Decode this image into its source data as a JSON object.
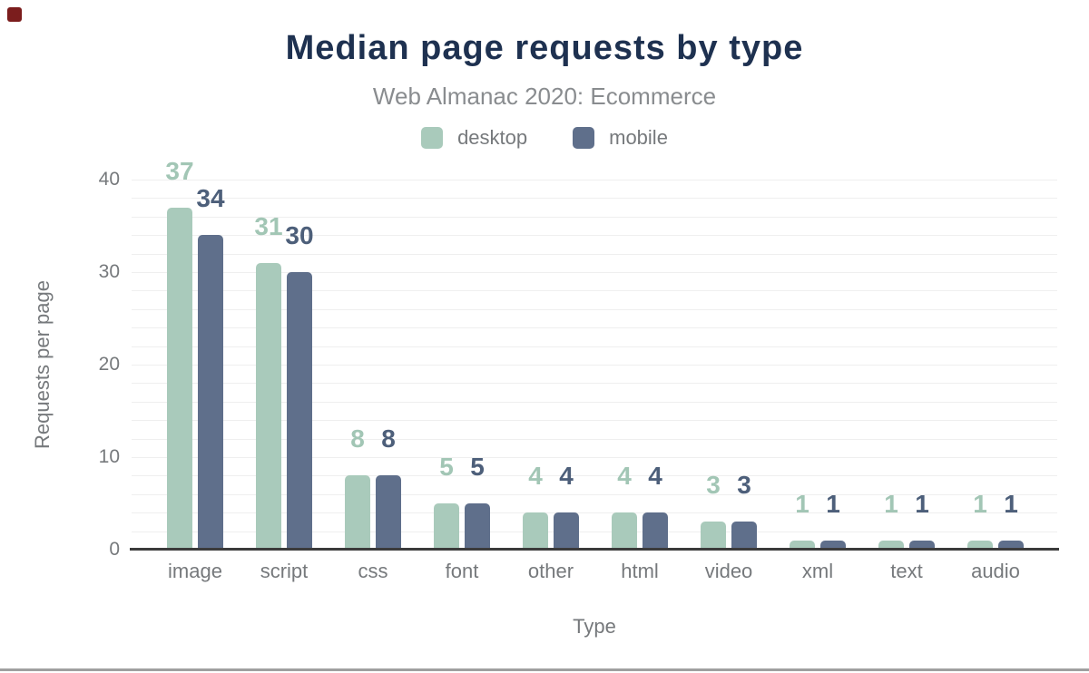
{
  "window": {
    "recording_indicator_color": "#7b1d1d",
    "bottom_border_color": "#a0a0a0"
  },
  "chart_data": {
    "type": "bar",
    "title": "Median page requests by type",
    "subtitle": "Web Almanac 2020: Ecommerce",
    "xlabel": "Type",
    "ylabel": "Requests per page",
    "categories": [
      "image",
      "script",
      "css",
      "font",
      "other",
      "html",
      "video",
      "xml",
      "text",
      "audio"
    ],
    "series": [
      {
        "name": "desktop",
        "color": "#a9cabb",
        "label_color": "#a2c6b5",
        "values": [
          37,
          31,
          8,
          5,
          4,
          4,
          3,
          1,
          1,
          1
        ]
      },
      {
        "name": "mobile",
        "color": "#5f6f8b",
        "label_color": "#4d5f7a",
        "values": [
          34,
          30,
          8,
          5,
          4,
          4,
          3,
          1,
          1,
          1
        ]
      }
    ],
    "ylim": [
      0,
      40
    ],
    "yticks": [
      0,
      10,
      20,
      30,
      40
    ],
    "grid": {
      "step": 2,
      "color": "#efefef",
      "visible": true
    },
    "legend_position": "top",
    "value_labels": true,
    "colors": {
      "title": "#1e3150",
      "subtitle": "#898c8f",
      "axis_text": "#76797c",
      "axis_line": "#3b3b3b"
    }
  }
}
